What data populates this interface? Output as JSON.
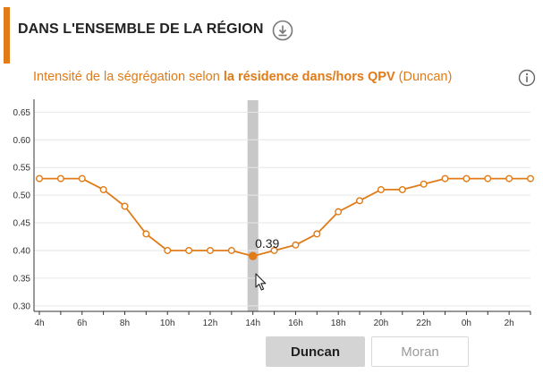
{
  "header": {
    "title": "DANS L'ENSEMBLE DE LA RÉGION",
    "download_icon": "download-circle-icon"
  },
  "subtitle": {
    "prefix": "Intensité de la ségrégation selon ",
    "emphasis": "la résidence dans/hors QPV",
    "suffix": " (Duncan)",
    "info_icon": "info-circle-icon"
  },
  "colors": {
    "accent": "#e07b18",
    "highlight_band": "#c8c8c8",
    "grid": "#e6e6e6"
  },
  "chart_data": {
    "type": "line",
    "x": [
      "4h",
      "5h",
      "6h",
      "7h",
      "8h",
      "9h",
      "10h",
      "11h",
      "12h",
      "13h",
      "14h",
      "15h",
      "16h",
      "17h",
      "18h",
      "19h",
      "20h",
      "21h",
      "22h",
      "23h",
      "0h",
      "1h",
      "2h",
      "3h"
    ],
    "x_tick_labels": [
      "4h",
      "6h",
      "8h",
      "10h",
      "12h",
      "14h",
      "16h",
      "18h",
      "20h",
      "22h",
      "0h",
      "2h"
    ],
    "series": [
      {
        "values": [
          0.53,
          0.53,
          0.53,
          0.51,
          0.48,
          0.43,
          0.4,
          0.4,
          0.4,
          0.4,
          0.39,
          0.4,
          0.41,
          0.43,
          0.47,
          0.49,
          0.51,
          0.51,
          0.52,
          0.53,
          0.53,
          0.53,
          0.53,
          0.53
        ]
      }
    ],
    "ylim": [
      0.29,
      0.67
    ],
    "y_ticks": [
      "0.30",
      "0.35",
      "0.40",
      "0.45",
      "0.50",
      "0.55",
      "0.60",
      "0.65"
    ],
    "grid": true,
    "highlight": {
      "x": "14h",
      "value": 0.39,
      "label": "0.39"
    },
    "title": "",
    "xlabel": "",
    "ylabel": ""
  },
  "buttons": {
    "duncan": "Duncan",
    "moran": "Moran"
  },
  "cursor_icon": "mouse-pointer-icon"
}
